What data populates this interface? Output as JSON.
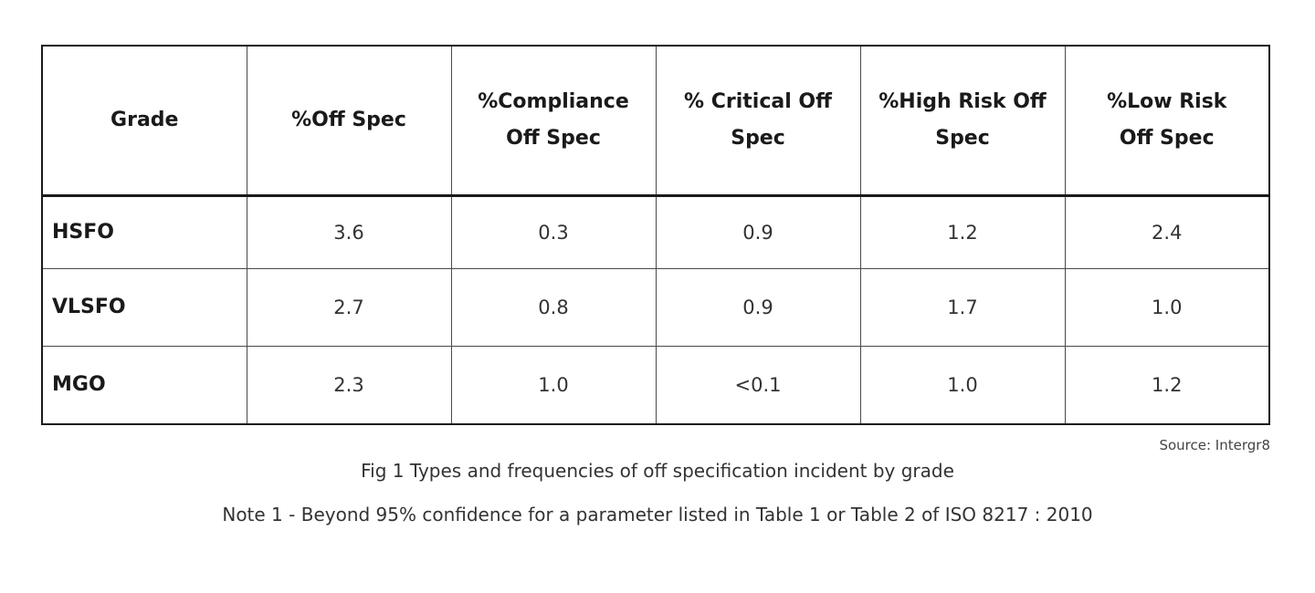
{
  "table": {
    "headers": [
      [
        "Grade"
      ],
      [
        "%Off Spec"
      ],
      [
        "%Compliance",
        "Off Spec"
      ],
      [
        "% Critical Off",
        "Spec"
      ],
      [
        "%High Risk Off",
        "Spec"
      ],
      [
        "%Low Risk",
        "Off Spec"
      ]
    ],
    "rows": [
      {
        "grade": "HSFO",
        "values": [
          "3.6",
          "0.3",
          "0.9",
          "1.2",
          "2.4"
        ]
      },
      {
        "grade": "VLSFO",
        "values": [
          "2.7",
          "0.8",
          "0.9",
          "1.7",
          "1.0"
        ]
      },
      {
        "grade": "MGO",
        "values": [
          "2.3",
          "1.0",
          "<0.1",
          "1.0",
          "1.2"
        ]
      }
    ]
  },
  "source": "Source: Intergr8",
  "figure_caption": "Fig 1 Types and frequencies of off specification incident by grade",
  "note": "Note 1 - Beyond 95% confidence for a parameter listed in Table 1 or Table 2 of ISO 8217 : 2010"
}
